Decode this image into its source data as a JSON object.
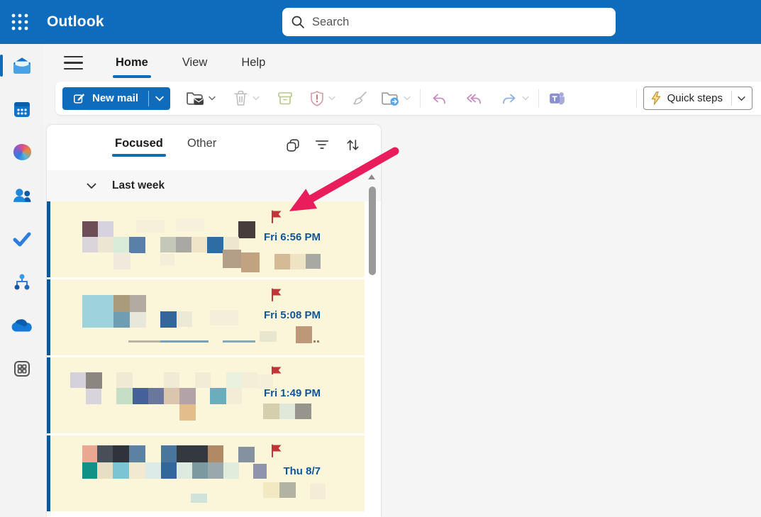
{
  "topbar": {
    "app_name": "Outlook",
    "search_placeholder": "Search"
  },
  "rail": {
    "items": [
      {
        "name": "mail",
        "selected": true
      },
      {
        "name": "calendar",
        "selected": false
      },
      {
        "name": "copilot",
        "selected": false
      },
      {
        "name": "people",
        "selected": false
      },
      {
        "name": "to-do",
        "selected": false
      },
      {
        "name": "org-chart",
        "selected": false
      },
      {
        "name": "onedrive",
        "selected": false
      },
      {
        "name": "more-apps",
        "selected": false
      }
    ]
  },
  "menubar": {
    "tabs": [
      {
        "label": "Home",
        "active": true
      },
      {
        "label": "View",
        "active": false
      },
      {
        "label": "Help",
        "active": false
      }
    ]
  },
  "ribbon": {
    "new_mail_label": "New mail",
    "quick_steps_label": "Quick steps",
    "icons": [
      "compose",
      "new-mail-dropdown",
      "move-to-folder-read",
      "delete",
      "archive",
      "report",
      "sweep",
      "move-to",
      "reply",
      "reply-all",
      "forward",
      "share-to-teams",
      "quick-steps-lightning",
      "quick-steps-dropdown"
    ]
  },
  "list": {
    "tabs": [
      {
        "label": "Focused",
        "active": true
      },
      {
        "label": "Other",
        "active": false
      }
    ],
    "header_icons": [
      "select-messages",
      "filter",
      "sort"
    ],
    "section_header": "Last week",
    "emails": [
      {
        "time": "Fri 6:56 PM",
        "flagged": true,
        "unread": true,
        "blocks": [
          [
            50,
            28,
            22,
            22,
            "#6d4e57"
          ],
          [
            72,
            28,
            22,
            22,
            "#d6d3de"
          ],
          [
            126,
            26,
            40,
            18,
            "#f4f0da"
          ],
          [
            182,
            24,
            40,
            18,
            "#f5f1dc"
          ],
          [
            270,
            28,
            24,
            24,
            "#453e3d"
          ],
          [
            50,
            50,
            22,
            22,
            "#d9d5db"
          ],
          [
            72,
            50,
            22,
            22,
            "#ece5d2"
          ],
          [
            94,
            50,
            22,
            22,
            "#d9ecd9"
          ],
          [
            116,
            50,
            23,
            23,
            "#5b80a7"
          ],
          [
            160,
            50,
            22,
            22,
            "#c3c8b8"
          ],
          [
            182,
            50,
            22,
            22,
            "#a9a8a4"
          ],
          [
            204,
            50,
            22,
            22,
            "#efe3c8"
          ],
          [
            226,
            50,
            23,
            23,
            "#2e6da4"
          ],
          [
            249,
            50,
            22,
            22,
            "#eee6cf"
          ],
          [
            94,
            72,
            24,
            24,
            "#efeadb"
          ],
          [
            160,
            74,
            20,
            16,
            "#f3eed9"
          ],
          [
            248,
            68,
            26,
            26,
            "#b39f88"
          ],
          [
            274,
            72,
            26,
            28,
            "#c2a37f"
          ],
          [
            321,
            74,
            22,
            22,
            "#d5bb95"
          ],
          [
            343,
            74,
            22,
            22,
            "#eee3c3"
          ],
          [
            365,
            74,
            21,
            21,
            "#a8a9a2"
          ]
        ]
      },
      {
        "time": "Fri 5:08 PM",
        "flagged": true,
        "unread": true,
        "blocks": [
          [
            50,
            22,
            44,
            46,
            "#9fd3dc"
          ],
          [
            94,
            22,
            23,
            24,
            "#aa9b7d"
          ],
          [
            117,
            22,
            23,
            24,
            "#b1aba1"
          ],
          [
            94,
            46,
            23,
            22,
            "#6f9db2"
          ],
          [
            117,
            46,
            23,
            22,
            "#e9e7db"
          ],
          [
            160,
            45,
            23,
            23,
            "#33679c"
          ],
          [
            183,
            45,
            22,
            22,
            "#ecead6"
          ],
          [
            230,
            43,
            40,
            22,
            "#f4eeda"
          ],
          [
            300,
            73,
            24,
            15,
            "#e9e6d0"
          ],
          [
            351,
            66,
            23,
            24,
            "#bd9878"
          ],
          [
            115,
            86,
            46,
            3,
            "#b9b4a2"
          ],
          [
            160,
            86,
            68,
            3,
            "#7aa0b4"
          ],
          [
            248,
            86,
            46,
            3,
            "#8aa7b8"
          ],
          [
            376,
            86,
            3,
            3,
            "#9c8264"
          ],
          [
            381,
            86,
            3,
            3,
            "#9c8264"
          ]
        ]
      },
      {
        "time": "Fri 1:49 PM",
        "flagged": true,
        "unread": true,
        "blocks": [
          [
            33,
            21,
            22,
            22,
            "#d4d1db"
          ],
          [
            55,
            21,
            23,
            23,
            "#8b8780"
          ],
          [
            55,
            44,
            22,
            22,
            "#d7d4db"
          ],
          [
            98,
            21,
            23,
            22,
            "#f0e9d3"
          ],
          [
            98,
            43,
            23,
            23,
            "#c5dec5"
          ],
          [
            121,
            43,
            22,
            23,
            "#46609c"
          ],
          [
            143,
            43,
            22,
            23,
            "#69779c"
          ],
          [
            165,
            43,
            22,
            23,
            "#d9c6ad"
          ],
          [
            187,
            43,
            23,
            23,
            "#b3a2a8"
          ],
          [
            165,
            21,
            22,
            22,
            "#f1ead4"
          ],
          [
            209,
            21,
            22,
            22,
            "#f2ebd5"
          ],
          [
            187,
            66,
            23,
            23,
            "#e4be8a"
          ],
          [
            230,
            43,
            23,
            23,
            "#6aaebe"
          ],
          [
            253,
            43,
            22,
            23,
            "#f3ecd6"
          ],
          [
            253,
            21,
            22,
            22,
            "#eaf1de"
          ],
          [
            275,
            21,
            22,
            22,
            "#f4edd7"
          ],
          [
            297,
            24,
            22,
            20,
            "#f5eed8"
          ],
          [
            305,
            65,
            23,
            22,
            "#d6cfae"
          ],
          [
            328,
            65,
            22,
            22,
            "#dfe8d9"
          ],
          [
            350,
            65,
            23,
            22,
            "#96948c"
          ]
        ]
      },
      {
        "time": "Thu 8/7",
        "flagged": true,
        "unread": true,
        "blocks": [
          [
            50,
            14,
            21,
            24,
            "#eaa890"
          ],
          [
            71,
            14,
            22,
            24,
            "#474f58"
          ],
          [
            93,
            14,
            23,
            24,
            "#30343a"
          ],
          [
            116,
            14,
            23,
            24,
            "#5d81a0"
          ],
          [
            161,
            14,
            22,
            24,
            "#49769c"
          ],
          [
            183,
            14,
            44,
            24,
            "#33393f"
          ],
          [
            227,
            14,
            22,
            24,
            "#b08a65"
          ],
          [
            270,
            16,
            23,
            22,
            "#8492a0"
          ],
          [
            50,
            38,
            21,
            23,
            "#0f9188"
          ],
          [
            71,
            38,
            22,
            23,
            "#e6dfc6"
          ],
          [
            93,
            38,
            23,
            23,
            "#7cc3d4"
          ],
          [
            116,
            38,
            23,
            23,
            "#f1ead0"
          ],
          [
            139,
            38,
            22,
            23,
            "#dcebe7"
          ],
          [
            161,
            38,
            22,
            23,
            "#33679c"
          ],
          [
            183,
            38,
            22,
            23,
            "#ddeadf"
          ],
          [
            205,
            38,
            22,
            23,
            "#7d99a0"
          ],
          [
            227,
            38,
            22,
            23,
            "#9aa8ac"
          ],
          [
            249,
            38,
            22,
            23,
            "#e2ecdc"
          ],
          [
            291,
            40,
            19,
            21,
            "#8f93ac"
          ],
          [
            203,
            82,
            23,
            13,
            "#cfe3da"
          ],
          [
            305,
            66,
            23,
            22,
            "#f2e9c2"
          ],
          [
            328,
            66,
            23,
            22,
            "#b3b3a4"
          ],
          [
            371,
            68,
            22,
            22,
            "#f5ecd8"
          ]
        ]
      }
    ]
  },
  "annotation": {
    "type": "arrow",
    "points_at": "flag-of-first-email"
  },
  "colors": {
    "brand": "#0f6cbd",
    "flag_red": "#c13438",
    "timestamp_blue": "#0b569c",
    "item_bg": "#fbf6d9",
    "unread_bar": "#0c5795",
    "arrow_pink": "#e91d5c"
  }
}
